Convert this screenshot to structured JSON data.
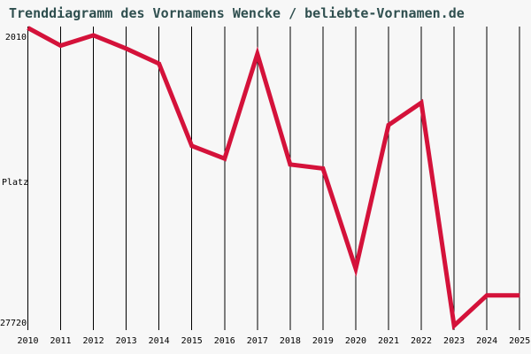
{
  "chart_data": {
    "type": "line",
    "title": "Trenddiagramm des Vornamens Wencke / beliebte-Vornamen.de",
    "ylabel": "Platz",
    "categories": [
      "2010",
      "2011",
      "2012",
      "2013",
      "2014",
      "2015",
      "2016",
      "2017",
      "2018",
      "2019",
      "2020",
      "2021",
      "2022",
      "2023",
      "2024",
      "2025"
    ],
    "values": [
      2010,
      3540,
      2650,
      3800,
      5100,
      12200,
      13300,
      4260,
      13800,
      14150,
      22800,
      10400,
      8470,
      27720,
      25100,
      25100
    ],
    "y_axis": {
      "top_tick": "2010",
      "bottom_tick": "27720",
      "inverted": true
    },
    "ylim": [
      2010,
      27720
    ],
    "grid": true,
    "legend_position": "none",
    "line_color": "#D4123A",
    "grid_color": "#000000",
    "title_color": "#2F4F4F",
    "background_color": "#F7F7F7"
  }
}
